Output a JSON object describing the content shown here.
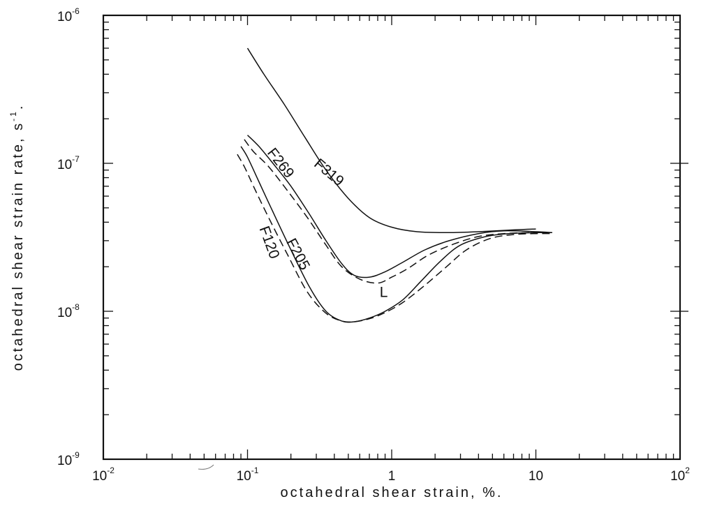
{
  "chart_data": {
    "type": "line",
    "xlabel": "octahedral shear strain, %.",
    "ylabel": "octahedral shear strain rate, s",
    "ylabel_unit_exp": "-1",
    "ylabel_suffix": ".",
    "xscale": "log",
    "yscale": "log",
    "xlim": [
      0.01,
      100
    ],
    "ylim": [
      1e-09,
      1e-06
    ],
    "grid": false,
    "x_ticks": [
      {
        "base": "10",
        "exp": "-2"
      },
      {
        "base": "10",
        "exp": "-1"
      },
      {
        "base": "1",
        "exp": ""
      },
      {
        "base": "10",
        "exp": ""
      },
      {
        "base": "10",
        "exp": "2"
      }
    ],
    "y_ticks": [
      {
        "base": "10",
        "exp": "-9"
      },
      {
        "base": "10",
        "exp": "-8"
      },
      {
        "base": "10",
        "exp": "-7"
      },
      {
        "base": "10",
        "exp": "-6"
      }
    ],
    "series": [
      {
        "name": "F319",
        "style": "solid",
        "x": [
          0.1,
          0.13,
          0.18,
          0.25,
          0.35,
          0.5,
          0.7,
          1.0,
          1.5,
          2.5,
          4.0,
          7.0,
          10.0
        ],
        "y": [
          6e-07,
          4e-07,
          2.5e-07,
          1.5e-07,
          9e-08,
          5.8e-08,
          4.3e-08,
          3.7e-08,
          3.45e-08,
          3.4e-08,
          3.45e-08,
          3.55e-08,
          3.6e-08
        ]
      },
      {
        "name": "F269",
        "style": "solid",
        "x": [
          0.1,
          0.12,
          0.15,
          0.2,
          0.27,
          0.35,
          0.45,
          0.55,
          0.7,
          0.9,
          1.2,
          1.7,
          2.5,
          4.0,
          6.0,
          10.0,
          13.0
        ],
        "y": [
          1.55e-07,
          1.3e-07,
          1e-07,
          7e-08,
          4.5e-08,
          3e-08,
          2.1e-08,
          1.75e-08,
          1.7e-08,
          1.85e-08,
          2.15e-08,
          2.6e-08,
          3e-08,
          3.35e-08,
          3.5e-08,
          3.45e-08,
          3.4e-08
        ]
      },
      {
        "name": "L",
        "style": "dashed",
        "x": [
          0.095,
          0.11,
          0.14,
          0.19,
          0.26,
          0.35,
          0.45,
          0.6,
          0.8,
          1.0,
          1.3,
          1.8,
          2.7,
          4.0,
          6.0,
          9.0,
          13.0
        ],
        "y": [
          1.45e-07,
          1.2e-07,
          9.5e-08,
          6.5e-08,
          4.3e-08,
          2.8e-08,
          2e-08,
          1.65e-08,
          1.55e-08,
          1.7e-08,
          1.95e-08,
          2.4e-08,
          2.85e-08,
          3.2e-08,
          3.35e-08,
          3.4e-08,
          3.4e-08
        ]
      },
      {
        "name": "F205",
        "style": "solid",
        "x": [
          0.09,
          0.1,
          0.12,
          0.15,
          0.2,
          0.27,
          0.35,
          0.45,
          0.55,
          0.7,
          0.9,
          1.2,
          1.6,
          2.2,
          3.0,
          4.5,
          6.5,
          10.0,
          13.0
        ],
        "y": [
          1.3e-07,
          1.1e-07,
          7.5e-08,
          4.7e-08,
          2.6e-08,
          1.45e-08,
          1e-08,
          8.6e-09,
          8.5e-09,
          9e-09,
          1e-08,
          1.2e-08,
          1.6e-08,
          2.2e-08,
          2.8e-08,
          3.2e-08,
          3.35e-08,
          3.4e-08,
          3.4e-08
        ]
      },
      {
        "name": "F120",
        "style": "dashed",
        "x": [
          0.085,
          0.095,
          0.11,
          0.14,
          0.19,
          0.26,
          0.35,
          0.45,
          0.55,
          0.7,
          0.9,
          1.2,
          1.7,
          2.4,
          3.3,
          4.8,
          7.0,
          10.0,
          13.0
        ],
        "y": [
          1.15e-07,
          9.5e-08,
          7e-08,
          4.3e-08,
          2.4e-08,
          1.35e-08,
          9.7e-09,
          8.6e-09,
          8.5e-09,
          8.9e-09,
          9.8e-09,
          1.15e-08,
          1.5e-08,
          2e-08,
          2.6e-08,
          3.1e-08,
          3.3e-08,
          3.35e-08,
          3.35e-08
        ]
      }
    ]
  }
}
